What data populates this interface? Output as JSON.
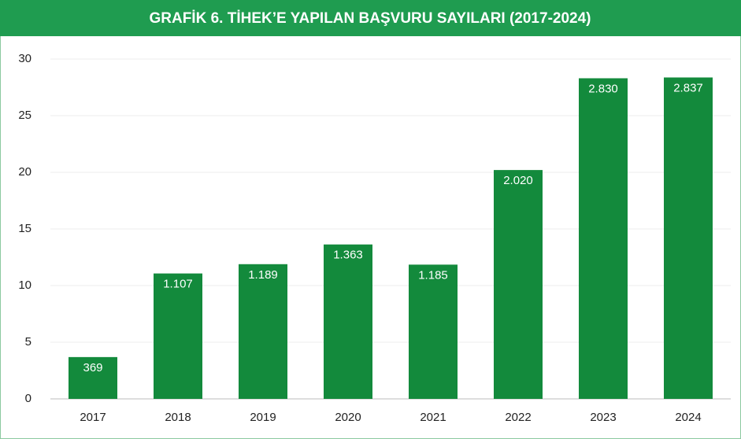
{
  "chart_data": {
    "type": "bar",
    "title": "GRAFİK 6. TİHEK’E YAPILAN BAŞVURU SAYILARI (2017-2024)",
    "categories": [
      "2017",
      "2018",
      "2019",
      "2020",
      "2021",
      "2022",
      "2023",
      "2024"
    ],
    "values": [
      3.69,
      11.07,
      11.89,
      13.63,
      11.85,
      20.2,
      28.3,
      28.37
    ],
    "value_labels": [
      "369",
      "1.107",
      "1.189",
      "1.363",
      "1.185",
      "2.020",
      "2.830",
      "2.837"
    ],
    "color": "#138a3c",
    "ylim": [
      0,
      30
    ],
    "yticks": [
      0,
      5,
      10,
      15,
      20,
      25,
      30
    ],
    "grid": true
  }
}
